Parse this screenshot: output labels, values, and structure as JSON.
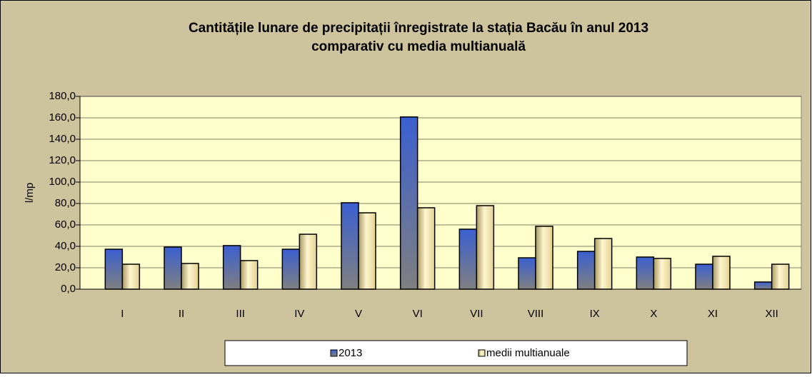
{
  "chart_data": {
    "type": "bar",
    "title": "Cantitățile lunare de precipitații înregistrate la stația Bacău în anul 2013",
    "subtitle": "comparativ cu media multianuală",
    "y_label": "l/mp",
    "categories": [
      "I",
      "II",
      "III",
      "IV",
      "V",
      "VI",
      "VII",
      "VIII",
      "IX",
      "X",
      "XI",
      "XII"
    ],
    "series": [
      {
        "name": "2013",
        "color": "#3a5fd0",
        "values": [
          37.3,
          39.3,
          40.7,
          37.3,
          80.7,
          160.8,
          56.0,
          29.3,
          35.3,
          30.0,
          23.3,
          6.7
        ]
      },
      {
        "name": "medii multianuale",
        "color": "#e2d290",
        "values": [
          23.3,
          24.0,
          26.7,
          51.3,
          71.3,
          76.0,
          78.0,
          58.7,
          47.3,
          28.7,
          30.7,
          23.3
        ]
      }
    ],
    "ylim": [
      0,
      180
    ],
    "yticks": [
      {
        "value": 0,
        "label": "0,0"
      },
      {
        "value": 20,
        "label": "20,0"
      },
      {
        "value": 40,
        "label": "40,0"
      },
      {
        "value": 60,
        "label": "60,0"
      },
      {
        "value": 80,
        "label": "80,0"
      },
      {
        "value": 100,
        "label": "100,0"
      },
      {
        "value": 120,
        "label": "120,0"
      },
      {
        "value": 140,
        "label": "140,0"
      },
      {
        "value": 160,
        "label": "160,0"
      },
      {
        "value": 180,
        "label": "180,0"
      }
    ],
    "grid": true,
    "legend": "bottom"
  }
}
